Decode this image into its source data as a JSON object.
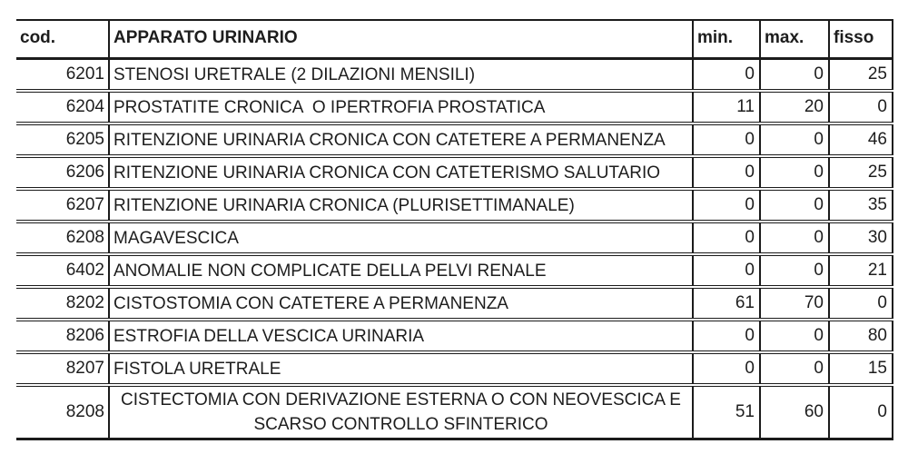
{
  "table": {
    "columns": [
      {
        "key": "cod",
        "label": "cod."
      },
      {
        "key": "desc",
        "label": "APPARATO URINARIO"
      },
      {
        "key": "min",
        "label": "min."
      },
      {
        "key": "max",
        "label": "max."
      },
      {
        "key": "fisso",
        "label": "fisso"
      }
    ],
    "rows": [
      {
        "cod": "6201",
        "desc": "STENOSI URETRALE (2 DILAZIONI MENSILI)",
        "min": "0",
        "max": "0",
        "fisso": "25"
      },
      {
        "cod": "6204",
        "desc": "PROSTATITE CRONICA  O IPERTROFIA PROSTATICA",
        "min": "11",
        "max": "20",
        "fisso": "0"
      },
      {
        "cod": "6205",
        "desc": "RITENZIONE URINARIA CRONICA CON CATETERE A PERMANENZA",
        "min": "0",
        "max": "0",
        "fisso": "46"
      },
      {
        "cod": "6206",
        "desc": "RITENZIONE URINARIA CRONICA CON CATETERISMO SALUTARIO",
        "min": "0",
        "max": "0",
        "fisso": "25"
      },
      {
        "cod": "6207",
        "desc": "RITENZIONE URINARIA CRONICA (PLURISETTIMANALE)",
        "min": "0",
        "max": "0",
        "fisso": "35"
      },
      {
        "cod": "6208",
        "desc": "MAGAVESCICA",
        "min": "0",
        "max": "0",
        "fisso": "30"
      },
      {
        "cod": "6402",
        "desc": "ANOMALIE NON COMPLICATE DELLA PELVI RENALE",
        "min": "0",
        "max": "0",
        "fisso": "21"
      },
      {
        "cod": "8202",
        "desc": "CISTOSTOMIA CON CATETERE A PERMANENZA",
        "min": "61",
        "max": "70",
        "fisso": "0"
      },
      {
        "cod": "8206",
        "desc": "ESTROFIA DELLA VESCICA URINARIA",
        "min": "0",
        "max": "0",
        "fisso": "80"
      },
      {
        "cod": "8207",
        "desc": "FISTOLA URETRALE",
        "min": "0",
        "max": "0",
        "fisso": "15"
      },
      {
        "cod": "8208",
        "desc": "CISTECTOMIA CON DERIVAZIONE ESTERNA O CON NEOVESCICA E SCARSO CONTROLLO SFINTERICO",
        "min": "51",
        "max": "60",
        "fisso": "0",
        "wrap_center": true
      }
    ]
  },
  "colors": {
    "border": "#1b1b1b",
    "text": "#1d1d1d",
    "background": "#ffffff"
  }
}
